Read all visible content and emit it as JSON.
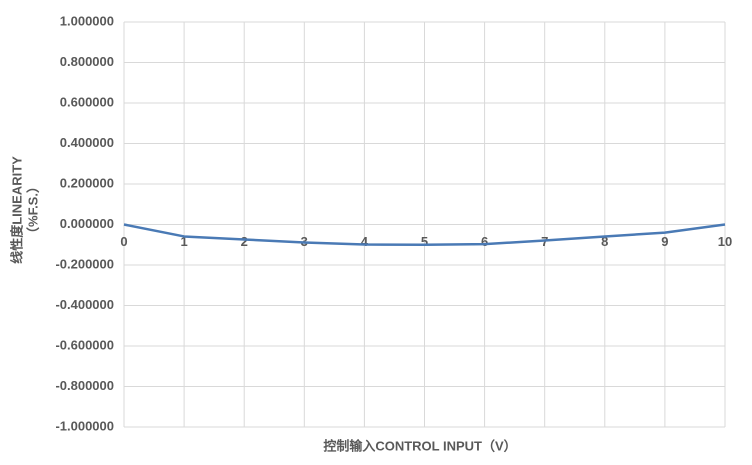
{
  "chart_data": {
    "type": "line",
    "x_label": "控制输入CONTROL INPUT（V）",
    "y_label": [
      "线性度LINEARITY",
      "（%F.S.）"
    ],
    "x": [
      0,
      1,
      2,
      3,
      4,
      5,
      6,
      7,
      8,
      9,
      10
    ],
    "series": [
      {
        "color": "#4a7ab5",
        "values": [
          0,
          -0.059,
          -0.074,
          -0.089,
          -0.099,
          -0.1,
          -0.097,
          -0.079,
          -0.059,
          -0.04,
          0
        ]
      }
    ],
    "xlim": [
      0,
      10
    ],
    "xticks": [
      0,
      1,
      2,
      3,
      4,
      5,
      6,
      7,
      8,
      9,
      10
    ],
    "ylim": [
      -1,
      1
    ],
    "yticks": [
      {
        "value": 1,
        "label": "1.000000"
      },
      {
        "value": 0.8,
        "label": "0.800000"
      },
      {
        "value": 0.6,
        "label": "0.600000"
      },
      {
        "value": 0.4,
        "label": "0.400000"
      },
      {
        "value": 0.2,
        "label": "0.200000"
      },
      {
        "value": 0,
        "label": "0.000000"
      },
      {
        "value": -0.2,
        "label": "-0.200000"
      },
      {
        "value": -0.4,
        "label": "-0.400000"
      },
      {
        "value": -0.6,
        "label": "-0.600000"
      },
      {
        "value": -0.8,
        "label": "-0.800000"
      },
      {
        "value": -1,
        "label": "-1.000000"
      }
    ],
    "grid": true
  }
}
